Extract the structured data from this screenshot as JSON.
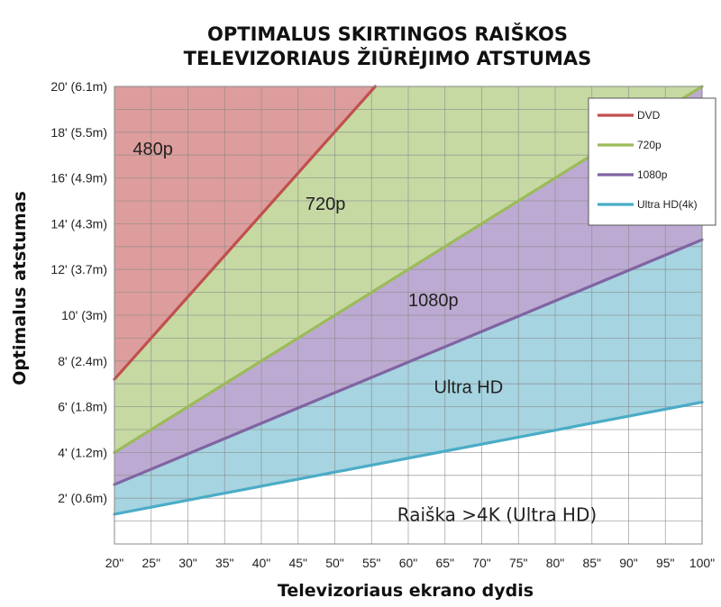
{
  "chart_data": {
    "type": "area",
    "title_lines": [
      "OPTIMALUS SKIRTINGOS RAIŠKOS",
      "TELEVIZORIAUS ŽIŪRĖJIMO ATSTUMAS"
    ],
    "xlabel": "Televizoriaus ekrano dydis",
    "ylabel": "Optimalus atstumas",
    "x": [
      20,
      25,
      30,
      35,
      40,
      45,
      50,
      55,
      60,
      65,
      70,
      75,
      80,
      85,
      90,
      95,
      100
    ],
    "x_tick_labels": [
      "20\"",
      "25\"",
      "30\"",
      "35\"",
      "40\"",
      "45\"",
      "50\"",
      "55\"",
      "60\"",
      "65\"",
      "70\"",
      "75\"",
      "80\"",
      "85\"",
      "90\"",
      "95\"",
      "100\""
    ],
    "xlim": [
      20,
      100
    ],
    "ylim": [
      0,
      20
    ],
    "y_ticks": [
      2,
      4,
      6,
      8,
      10,
      12,
      14,
      16,
      18,
      20
    ],
    "y_tick_labels": [
      "2' (0.6m)",
      "4' (1.2m)",
      "6' (1.8m)",
      "8' (2.4m)",
      "10' (3m)",
      "12' (3.7m)",
      "14' (4.3m)",
      "16' (4.9m)",
      "18' (5.5m)",
      "20' (6.1m)"
    ],
    "grid": true,
    "legend_position": "top-right",
    "series": [
      {
        "name": "DVD",
        "key": "dvd",
        "color": "#c0504d",
        "fill": "#dd9d9c",
        "x": [
          20,
          55.5
        ],
        "y": [
          7.2,
          20
        ]
      },
      {
        "name": "720p",
        "key": "p720",
        "color": "#9bbb59",
        "fill": "#c6d9a3",
        "x": [
          20,
          100
        ],
        "y": [
          4.0,
          20
        ]
      },
      {
        "name": "1080p",
        "key": "p1080",
        "color": "#8064a2",
        "fill": "#bdaad2",
        "x": [
          20,
          100
        ],
        "y": [
          2.6,
          13.3
        ]
      },
      {
        "name": "Ultra HD(4k)",
        "key": "uhd",
        "color": "#4bacc6",
        "fill": "#a6d4e1",
        "x": [
          20,
          100
        ],
        "y": [
          1.3,
          6.2
        ]
      }
    ],
    "region_labels": [
      {
        "text": "480p",
        "x": 22.5,
        "y": 17.0
      },
      {
        "text": "720p",
        "x": 46.0,
        "y": 14.6
      },
      {
        "text": "1080p",
        "x": 60.0,
        "y": 10.4
      },
      {
        "text": "Ultra HD",
        "x": 63.5,
        "y": 6.6
      }
    ],
    "note": {
      "text": "Raiška >4K (Ultra HD)",
      "x": 58.5,
      "y": 1.0
    }
  }
}
